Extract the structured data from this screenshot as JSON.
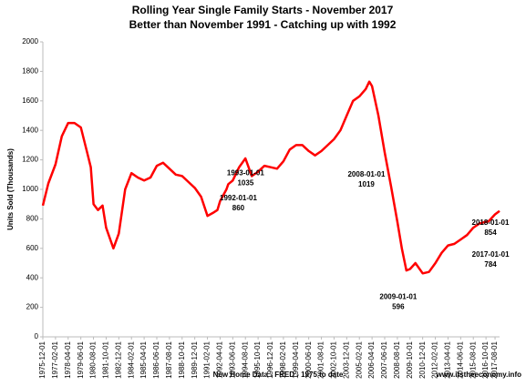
{
  "chart_data": {
    "type": "line",
    "title": "Rolling Year Single Family Starts - November 2017",
    "subtitle": "Better than November 1991 - Catching up with 1992",
    "y_label": "Units Sold (Thousands)",
    "x_label": "New Home Data - FRED - 1975 to date",
    "source": "www.itstheeconomy.info",
    "x": [
      "1975-12-01",
      "1976-06-01",
      "1977-02-01",
      "1977-09-01",
      "1978-04-01",
      "1978-11-01",
      "1979-06-01",
      "1980-01-01",
      "1980-05-01",
      "1980-08-01",
      "1981-01-01",
      "1981-06-01",
      "1981-10-01",
      "1982-06-01",
      "1982-12-01",
      "1983-07-01",
      "1984-02-01",
      "1984-09-01",
      "1985-04-01",
      "1985-11-01",
      "1986-06-01",
      "1987-01-01",
      "1987-08-01",
      "1988-03-01",
      "1988-10-01",
      "1989-05-01",
      "1989-12-01",
      "1990-07-01",
      "1991-02-01",
      "1991-08-01",
      "1992-01-01",
      "1992-04-01",
      "1992-11-01",
      "1993-01-01",
      "1993-06-01",
      "1994-01-01",
      "1994-08-01",
      "1995-03-01",
      "1995-10-01",
      "1996-05-01",
      "1996-12-01",
      "1997-07-01",
      "1998-02-01",
      "1998-09-01",
      "1999-04-01",
      "1999-11-01",
      "2000-06-01",
      "2001-01-01",
      "2001-08-01",
      "2002-03-01",
      "2002-10-01",
      "2003-05-01",
      "2003-12-01",
      "2004-07-01",
      "2005-02-01",
      "2005-09-01",
      "2006-01-01",
      "2006-04-01",
      "2006-11-01",
      "2007-06-01",
      "2008-01-01",
      "2008-08-01",
      "2009-01-01",
      "2009-06-01",
      "2009-10-01",
      "2010-04-01",
      "2010-12-01",
      "2011-07-01",
      "2012-02-01",
      "2012-09-01",
      "2013-04-01",
      "2013-11-01",
      "2014-06-01",
      "2015-01-01",
      "2015-08-01",
      "2016-03-01",
      "2017-01-01",
      "2017-08-01",
      "2018-01-01"
    ],
    "series": [
      {
        "color": "#ff0000",
        "values": [
          890,
          1040,
          1170,
          1360,
          1450,
          1450,
          1420,
          1250,
          1150,
          900,
          860,
          890,
          740,
          600,
          700,
          1000,
          1110,
          1080,
          1060,
          1080,
          1160,
          1180,
          1140,
          1100,
          1090,
          1050,
          1010,
          950,
          820,
          840,
          860,
          920,
          1000,
          1035,
          1060,
          1150,
          1210,
          1090,
          1120,
          1160,
          1150,
          1140,
          1190,
          1270,
          1300,
          1300,
          1260,
          1230,
          1260,
          1300,
          1340,
          1400,
          1500,
          1600,
          1630,
          1680,
          1730,
          1700,
          1500,
          1250,
          1019,
          780,
          596,
          450,
          460,
          500,
          430,
          440,
          500,
          570,
          620,
          630,
          660,
          690,
          740,
          770,
          784,
          830,
          854
        ]
      }
    ],
    "xlim": [
      "1975-12-01",
      "2018-01-01"
    ],
    "xticks": [
      "1975-12-01",
      "1977-02-01",
      "1978-04-01",
      "1979-06-01",
      "1980-08-01",
      "1981-10-01",
      "1982-12-01",
      "1984-02-01",
      "1985-04-01",
      "1986-06-01",
      "1987-08-01",
      "1988-10-01",
      "1989-12-01",
      "1991-02-01",
      "1992-04-01",
      "1993-06-01",
      "1994-08-01",
      "1995-10-01",
      "1996-12-01",
      "1998-02-01",
      "1999-04-01",
      "2000-06-01",
      "2001-08-01",
      "2002-10-01",
      "2003-12-01",
      "2005-02-01",
      "2006-04-01",
      "2007-06-01",
      "2008-08-01",
      "2009-10-01",
      "2010-12-01",
      "2012-02-01",
      "2013-04-01",
      "2014-06-01",
      "2015-08-01",
      "2016-10-01",
      "2017-08-01"
    ],
    "ylim": [
      0,
      2000
    ],
    "yticks": [
      0,
      200,
      400,
      600,
      800,
      1000,
      1200,
      1400,
      1600,
      1800,
      2000
    ],
    "grid": false,
    "annotations": [
      {
        "date": "1993-01-01",
        "value": 1035
      },
      {
        "date": "1992-01-01",
        "value": 860
      },
      {
        "date": "2008-01-01",
        "value": 1019
      },
      {
        "date": "2009-01-01",
        "value": 596
      },
      {
        "date": "2017-01-01",
        "value": 784
      },
      {
        "date": "2018-01-01",
        "value": 854
      }
    ]
  }
}
